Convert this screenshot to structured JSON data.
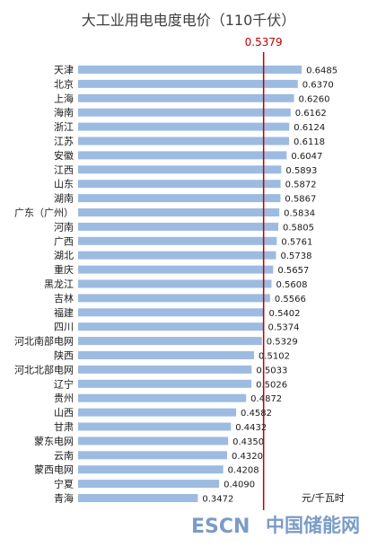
{
  "chart_data": {
    "type": "bar",
    "orientation": "horizontal",
    "title": "大工业用电电度电价（110千伏）",
    "unit_label": "元/千瓦时",
    "reference_line": {
      "value": 0.5379,
      "label": "0.5379",
      "color": "#c00000"
    },
    "bar_color": "#9dbbe1",
    "categories": [
      "天津",
      "北京",
      "上海",
      "海南",
      "浙江",
      "江苏",
      "安徽",
      "江西",
      "山东",
      "湖南",
      "广东（广州）",
      "河南",
      "广西",
      "湖北",
      "重庆",
      "黑龙江",
      "吉林",
      "福建",
      "四川",
      "河北南部电网",
      "陕西",
      "河北北部电网",
      "辽宁",
      "贵州",
      "山西",
      "甘肃",
      "蒙东电网",
      "云南",
      "蒙西电网",
      "宁夏",
      "青海"
    ],
    "values": [
      0.6485,
      0.637,
      0.626,
      0.6162,
      0.6124,
      0.6118,
      0.6047,
      0.5893,
      0.5872,
      0.5867,
      0.5834,
      0.5805,
      0.5761,
      0.5738,
      0.5657,
      0.5608,
      0.5566,
      0.5402,
      0.5374,
      0.5329,
      0.5102,
      0.5033,
      0.5026,
      0.4872,
      0.4582,
      0.4432,
      0.435,
      0.432,
      0.4208,
      0.409,
      0.3472
    ],
    "value_labels": [
      "0.6485",
      "0.6370",
      "0.6260",
      "0.6162",
      "0.6124",
      "0.6118",
      "0.6047",
      "0.5893",
      "0.5872",
      "0.5867",
      "0.5834",
      "0.5805",
      "0.5761",
      "0.5738",
      "0.5657",
      "0.5608",
      "0.5566",
      "0.5402",
      "0.5374",
      "0.5329",
      "0.5102",
      "0.5033",
      "0.5026",
      "0.4872",
      "0.4582",
      "0.4432",
      "0.4350",
      "0.4320",
      "0.4208",
      "0.4090",
      "0.3472"
    ],
    "grid": false,
    "legend": "none"
  },
  "watermark": {
    "brand": "ESCN",
    "text": "中国储能网",
    "color": "#7a9cc6"
  }
}
